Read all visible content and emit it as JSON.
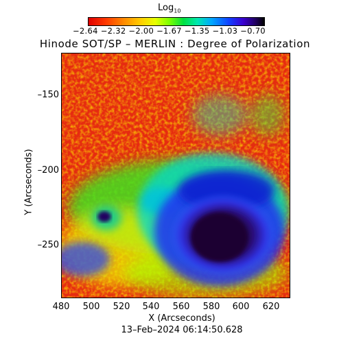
{
  "colorbar": {
    "title_base": "Log",
    "title_sub": "10",
    "ticks_text": "−2.64 −2.32 −2.00 −1.67 −1.35 −1.03 −0.70"
  },
  "title": "Hinode SOT/SP – MERLIN : Degree of Polarization",
  "axes": {
    "xlabel": "X (Arcseconds)",
    "ylabel": "Y (Arcseconds)",
    "xticks": [
      "480",
      "500",
      "520",
      "540",
      "560",
      "580",
      "600",
      "620"
    ],
    "yticks": [
      "–150",
      "–200",
      "–250"
    ]
  },
  "timestamp": "13–Feb–2024 06:14:50.628",
  "colors": {
    "background_red": "#e62b10",
    "umbra": "#200040",
    "penumbra": "#2020e0"
  }
}
